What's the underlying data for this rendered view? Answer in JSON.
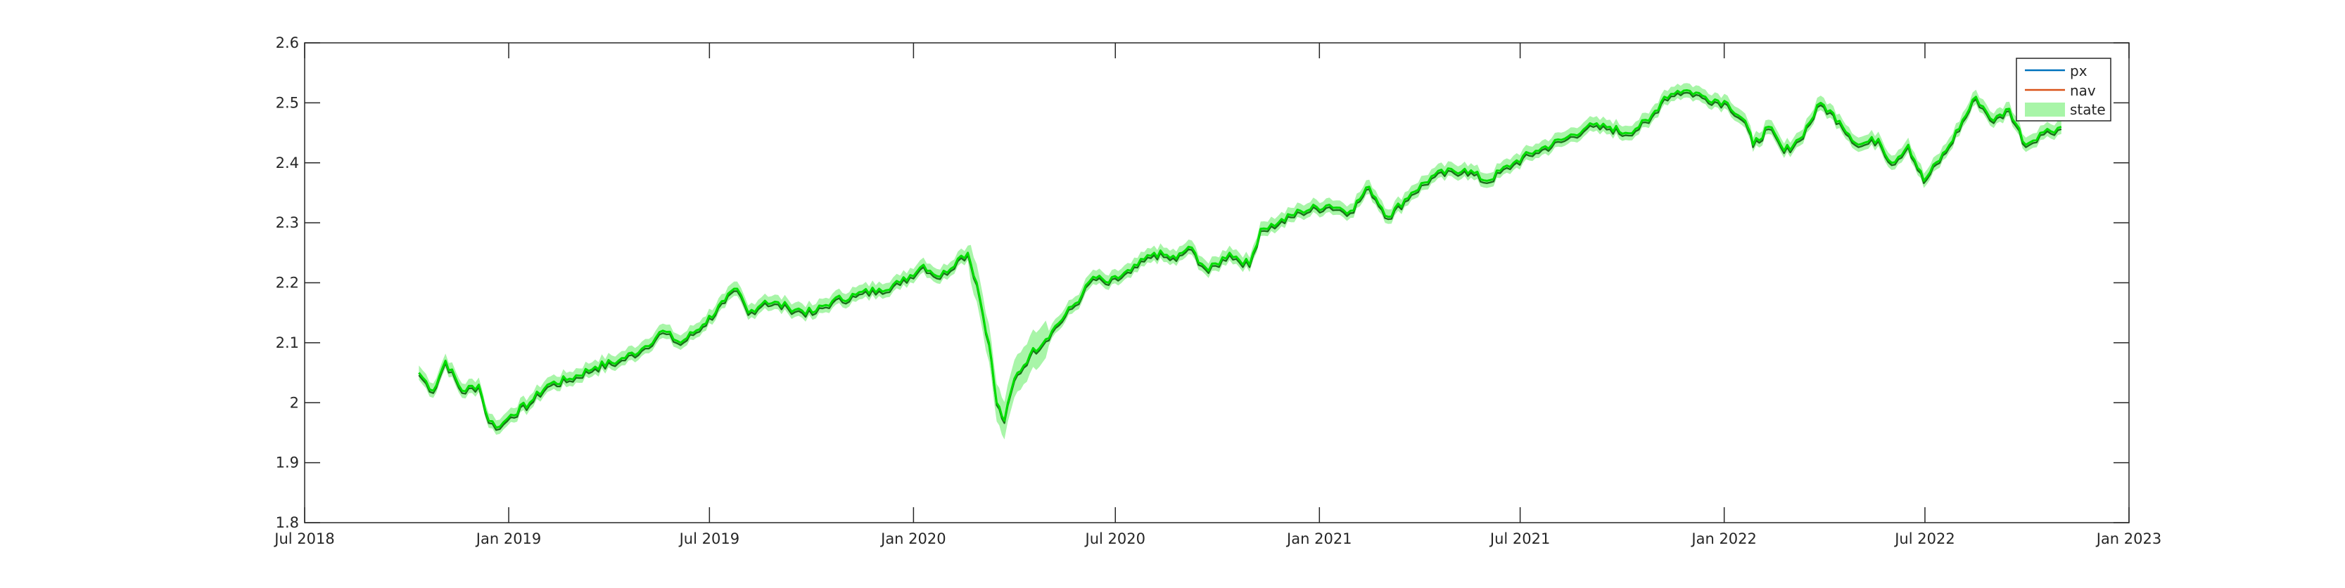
{
  "chart_data": {
    "type": "line",
    "title": "",
    "xlabel": "",
    "ylabel": "",
    "xlim": [
      "2018-07-01",
      "2023-01-01"
    ],
    "ylim": [
      1.8,
      2.6
    ],
    "x_ticks": [
      "Jul 2018",
      "Jan 2019",
      "Jul 2019",
      "Jan 2020",
      "Jul 2020",
      "Jan 2021",
      "Jul 2021",
      "Jan 2022",
      "Jul 2022",
      "Jan 2023"
    ],
    "y_ticks": [
      "1.8",
      "1.9",
      "2",
      "2.1",
      "2.2",
      "2.3",
      "2.4",
      "2.5",
      "2.6"
    ],
    "grid": false,
    "legend_position": "top-right",
    "legend": [
      "px",
      "nav",
      "state"
    ],
    "colors": {
      "px": "#0072BD",
      "nav": "#D95319",
      "state_line": "#00DD00",
      "state_band": "#A8F5A8",
      "px_under": "#1A6E1A"
    },
    "band_halfwidth": 0.012,
    "x": [
      "2018-10-12",
      "2018-10-25",
      "2018-11-05",
      "2018-11-20",
      "2018-12-05",
      "2018-12-14",
      "2018-12-24",
      "2019-01-03",
      "2019-01-20",
      "2019-02-05",
      "2019-02-25",
      "2019-03-20",
      "2019-04-10",
      "2019-05-01",
      "2019-05-20",
      "2019-06-05",
      "2019-06-25",
      "2019-07-15",
      "2019-07-26",
      "2019-08-05",
      "2019-08-20",
      "2019-09-10",
      "2019-10-02",
      "2019-10-20",
      "2019-11-10",
      "2019-12-01",
      "2019-12-20",
      "2020-01-10",
      "2020-01-25",
      "2020-02-10",
      "2020-02-19",
      "2020-02-27",
      "2020-03-09",
      "2020-03-16",
      "2020-03-23",
      "2020-04-01",
      "2020-04-15",
      "2020-05-05",
      "2020-06-01",
      "2020-06-11",
      "2020-06-25",
      "2020-07-15",
      "2020-08-05",
      "2020-08-25",
      "2020-09-05",
      "2020-09-23",
      "2020-10-12",
      "2020-10-30",
      "2020-11-09",
      "2020-11-25",
      "2020-12-15",
      "2021-01-10",
      "2021-01-29",
      "2021-02-15",
      "2021-03-04",
      "2021-03-25",
      "2021-04-15",
      "2021-05-12",
      "2021-06-01",
      "2021-06-25",
      "2021-07-15",
      "2021-08-10",
      "2021-08-30",
      "2021-09-20",
      "2021-10-04",
      "2021-10-25",
      "2021-11-08",
      "2021-11-20",
      "2021-12-01",
      "2021-12-15",
      "2022-01-04",
      "2022-01-20",
      "2022-01-27",
      "2022-02-10",
      "2022-02-24",
      "2022-03-10",
      "2022-03-29",
      "2022-04-15",
      "2022-05-02",
      "2022-05-20",
      "2022-06-01",
      "2022-06-16",
      "2022-06-30",
      "2022-07-20",
      "2022-08-16",
      "2022-09-01",
      "2022-09-15",
      "2022-09-30",
      "2022-10-13",
      "2022-11-01"
    ],
    "series": [
      {
        "name": "state",
        "values": [
          2.05,
          2.02,
          2.07,
          2.02,
          2.03,
          1.97,
          1.96,
          1.98,
          2.0,
          2.03,
          2.04,
          2.06,
          2.07,
          2.09,
          2.12,
          2.1,
          2.13,
          2.17,
          2.19,
          2.15,
          2.17,
          2.16,
          2.15,
          2.17,
          2.18,
          2.19,
          2.2,
          2.23,
          2.21,
          2.24,
          2.25,
          2.2,
          2.1,
          2.0,
          1.97,
          2.04,
          2.08,
          2.12,
          2.18,
          2.21,
          2.2,
          2.22,
          2.25,
          2.24,
          2.26,
          2.22,
          2.25,
          2.23,
          2.29,
          2.3,
          2.32,
          2.33,
          2.32,
          2.36,
          2.31,
          2.35,
          2.38,
          2.39,
          2.37,
          2.4,
          2.42,
          2.44,
          2.46,
          2.46,
          2.45,
          2.47,
          2.51,
          2.52,
          2.52,
          2.51,
          2.5,
          2.47,
          2.43,
          2.46,
          2.42,
          2.44,
          2.5,
          2.47,
          2.43,
          2.44,
          2.4,
          2.43,
          2.37,
          2.42,
          2.51,
          2.47,
          2.49,
          2.43,
          2.45,
          2.46
        ]
      }
    ]
  }
}
